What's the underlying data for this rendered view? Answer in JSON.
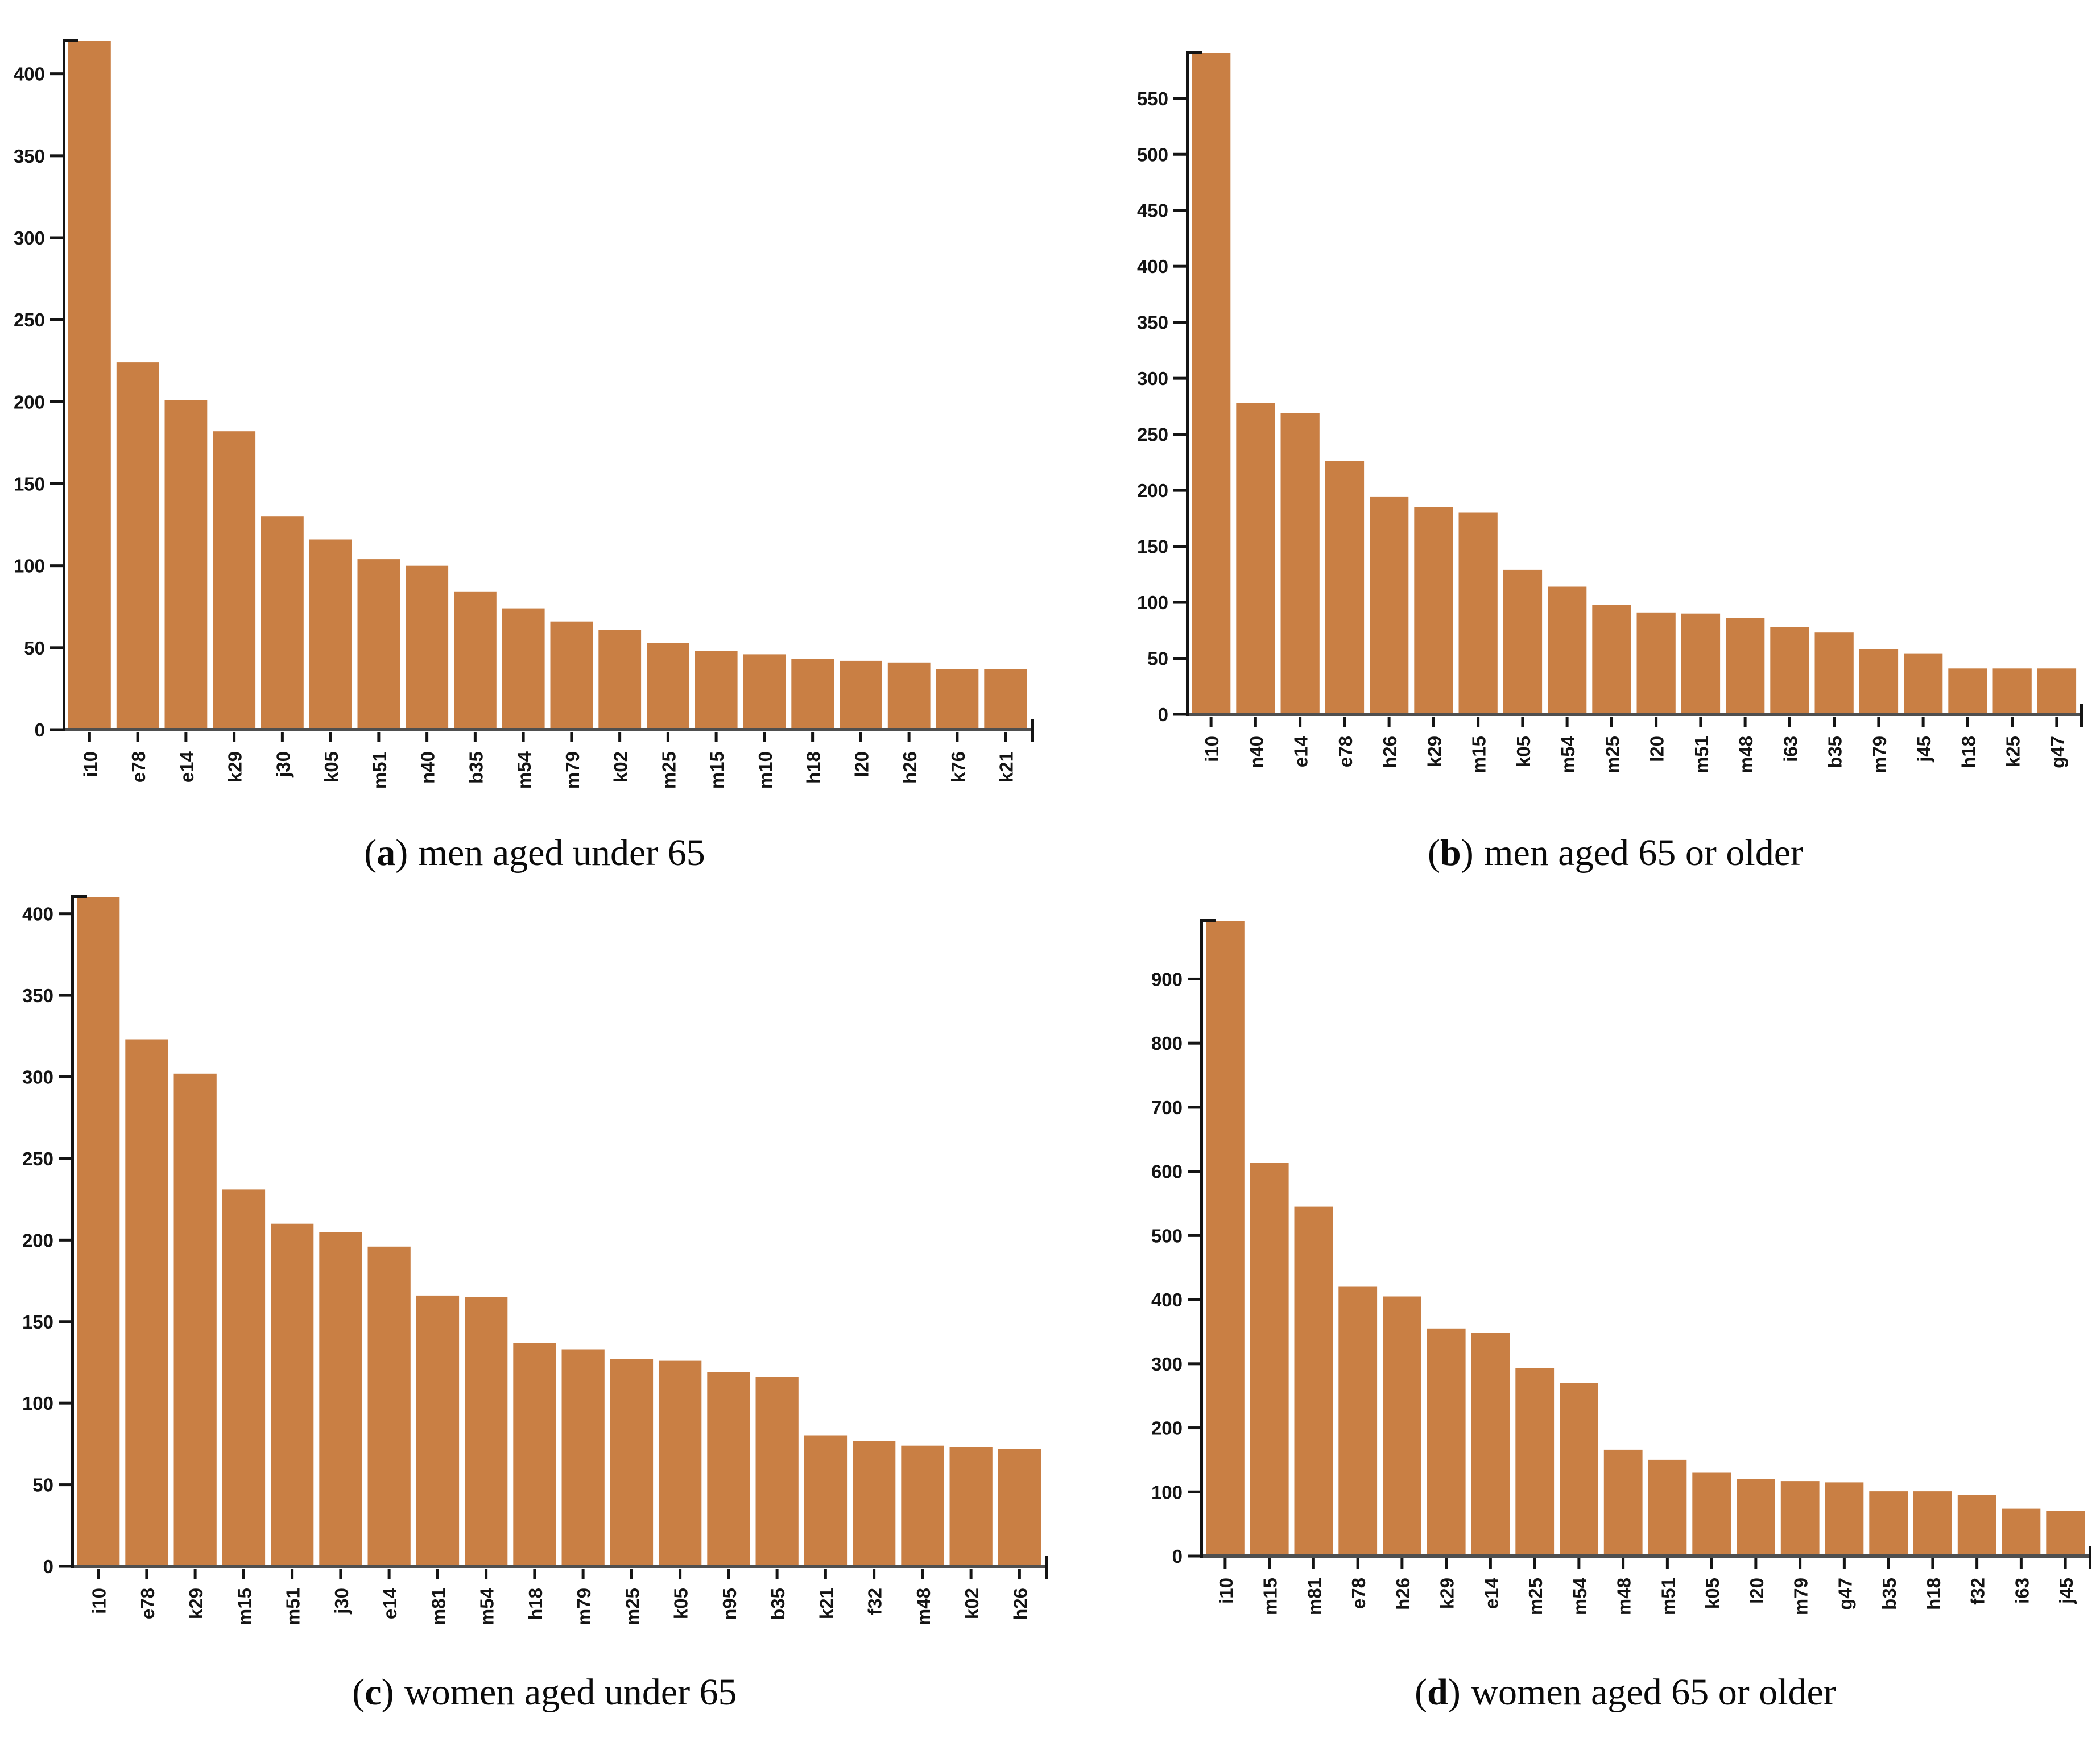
{
  "figure": {
    "bar_color": "#c97f44",
    "axis_color": "#141414",
    "baseline_color": "#4f4f4f",
    "background_color": "#ffffff"
  },
  "captions": [
    {
      "prefix": "(",
      "letter": "a",
      "suffix": ")",
      "text": "men aged under 65"
    },
    {
      "prefix": "(",
      "letter": "b",
      "suffix": ")",
      "text": "men aged 65 or older"
    },
    {
      "prefix": "(",
      "letter": "c",
      "suffix": ")",
      "text": "women aged under 65"
    },
    {
      "prefix": "(",
      "letter": "d",
      "suffix": ")",
      "text": "women aged 65 or older"
    }
  ],
  "chart_data": [
    {
      "type": "bar",
      "title": "(a) men aged under 65",
      "xlabel": "",
      "ylabel": "",
      "grid": false,
      "legend": "none",
      "categories": [
        "i10",
        "e78",
        "e14",
        "k29",
        "j30",
        "k05",
        "m51",
        "n40",
        "b35",
        "m54",
        "m79",
        "k02",
        "m25",
        "m15",
        "m10",
        "h18",
        "l20",
        "h26",
        "k76",
        "k21"
      ],
      "values": [
        420,
        224,
        201,
        182,
        130,
        116,
        104,
        100,
        84,
        74,
        66,
        61,
        53,
        48,
        46,
        43,
        42,
        41,
        37,
        37
      ],
      "ylim": [
        0,
        420
      ],
      "yticks": [
        0,
        50,
        100,
        150,
        200,
        250,
        300,
        350,
        400
      ]
    },
    {
      "type": "bar",
      "title": "(b) men aged 65 or older",
      "xlabel": "",
      "ylabel": "",
      "grid": false,
      "legend": "none",
      "categories": [
        "i10",
        "n40",
        "e14",
        "e78",
        "h26",
        "k29",
        "m15",
        "k05",
        "m54",
        "m25",
        "l20",
        "m51",
        "m48",
        "i63",
        "b35",
        "m79",
        "j45",
        "h18",
        "k25",
        "g47"
      ],
      "values": [
        590,
        278,
        269,
        226,
        194,
        185,
        180,
        129,
        114,
        98,
        91,
        90,
        86,
        78,
        73,
        58,
        54,
        41,
        41,
        41
      ],
      "ylim": [
        0,
        590
      ],
      "yticks": [
        0,
        50,
        100,
        150,
        200,
        250,
        300,
        350,
        400,
        450,
        500,
        550
      ]
    },
    {
      "type": "bar",
      "title": "(c) women aged under 65",
      "xlabel": "",
      "ylabel": "",
      "grid": false,
      "legend": "none",
      "categories": [
        "i10",
        "e78",
        "k29",
        "m15",
        "m51",
        "j30",
        "e14",
        "m81",
        "m54",
        "h18",
        "m79",
        "m25",
        "k05",
        "n95",
        "b35",
        "k21",
        "f32",
        "m48",
        "k02",
        "h26"
      ],
      "values": [
        410,
        323,
        302,
        231,
        210,
        205,
        196,
        166,
        165,
        137,
        133,
        127,
        126,
        119,
        116,
        80,
        77,
        74,
        73,
        72
      ],
      "ylim": [
        0,
        410
      ],
      "yticks": [
        0,
        50,
        100,
        150,
        200,
        250,
        300,
        350,
        400
      ]
    },
    {
      "type": "bar",
      "title": "(d) women aged 65 or older",
      "xlabel": "",
      "ylabel": "",
      "grid": false,
      "legend": "none",
      "categories": [
        "i10",
        "m15",
        "m81",
        "e78",
        "h26",
        "k29",
        "e14",
        "m25",
        "m54",
        "m48",
        "m51",
        "k05",
        "l20",
        "m79",
        "g47",
        "b35",
        "h18",
        "f32",
        "i63",
        "j45"
      ],
      "values": [
        990,
        613,
        545,
        420,
        405,
        355,
        348,
        293,
        270,
        166,
        150,
        130,
        120,
        117,
        115,
        101,
        101,
        95,
        74,
        71
      ],
      "ylim": [
        0,
        990
      ],
      "yticks": [
        0,
        100,
        200,
        300,
        400,
        500,
        600,
        700,
        800,
        900
      ]
    }
  ]
}
